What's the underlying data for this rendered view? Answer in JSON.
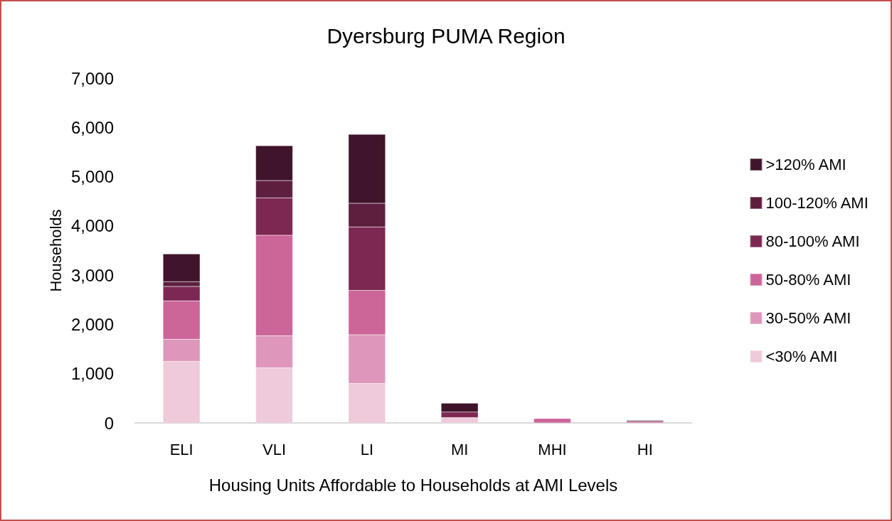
{
  "chart_data": {
    "type": "bar",
    "title": "Dyersburg PUMA Region",
    "xlabel": "Housing Units Affordable to Households at AMI Levels",
    "ylabel": "Households",
    "categories": [
      "ELI",
      "VLI",
      "LI",
      "MI",
      "MHI",
      "HI"
    ],
    "stacked": true,
    "series": [
      {
        "name": "<30% AMI",
        "color": "#efcadb",
        "values": [
          1250,
          1120,
          800,
          110,
          null,
          null
        ]
      },
      {
        "name": "30-50% AMI",
        "color": "#de97ba",
        "values": [
          450,
          650,
          990,
          null,
          null,
          null
        ]
      },
      {
        "name": "50-80% AMI",
        "color": "#cc6598",
        "values": [
          780,
          2040,
          900,
          null,
          90,
          30
        ]
      },
      {
        "name": "80-100% AMI",
        "color": "#7c2852",
        "values": [
          290,
          760,
          1290,
          110,
          null,
          null
        ]
      },
      {
        "name": "100-120% AMI",
        "color": "#5e1f3e",
        "values": [
          100,
          350,
          480,
          null,
          null,
          null
        ]
      },
      {
        "name": ">120% AMI",
        "color": "#40142a",
        "values": [
          560,
          710,
          1400,
          180,
          null,
          20
        ]
      }
    ],
    "ylim": [
      0,
      7000
    ],
    "yticks": [
      0,
      {
        "value": 1000,
        "label": "1,000"
      },
      {
        "value": 2000,
        "label": "2,000"
      },
      {
        "value": 3000,
        "label": "3,000"
      },
      {
        "value": 4000,
        "label": "4,000"
      },
      {
        "value": 5000,
        "label": "5,000"
      },
      {
        "value": 6000,
        "label": "6,000"
      },
      {
        "value": 7000,
        "label": "7,000"
      }
    ],
    "grid": false,
    "legend": "right"
  }
}
